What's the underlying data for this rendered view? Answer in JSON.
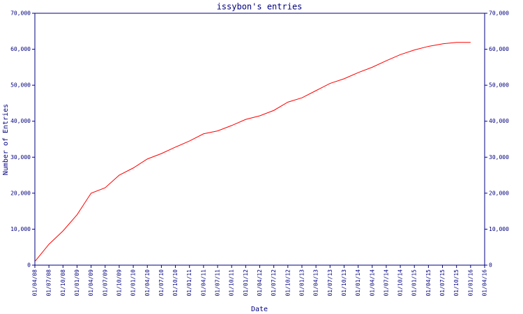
{
  "chart_data": {
    "type": "line",
    "title": "issybon's entries",
    "x_label": "Date",
    "y_label": "Number of Entries",
    "categories": [
      "01/04/08",
      "01/07/08",
      "01/10/08",
      "01/01/09",
      "01/04/09",
      "01/07/09",
      "01/10/09",
      "01/01/10",
      "01/04/10",
      "01/07/10",
      "01/10/10",
      "01/01/11",
      "01/04/11",
      "01/07/11",
      "01/10/11",
      "01/01/12",
      "01/04/12",
      "01/07/12",
      "01/10/12",
      "01/01/13",
      "01/04/13",
      "01/07/13",
      "01/10/13",
      "01/01/14",
      "01/04/14",
      "01/07/14",
      "01/10/14",
      "01/01/15",
      "01/04/15",
      "01/07/15",
      "01/10/15",
      "01/01/16",
      "01/04/16"
    ],
    "series": [
      {
        "name": "Entries",
        "color": "#ff0000",
        "values": [
          1000,
          5800,
          9500,
          14000,
          20000,
          21500,
          25000,
          27000,
          29500,
          31000,
          32800,
          34500,
          36500,
          37300,
          38800,
          40500,
          41500,
          43000,
          45300,
          46500,
          48500,
          50500,
          51800,
          53500,
          55000,
          56800,
          58500,
          59800,
          60800,
          61500,
          61900,
          61900,
          null
        ]
      }
    ],
    "ylim": [
      0,
      70000
    ],
    "yticks": [
      0,
      {
        "value": 10000,
        "label": "10,000"
      },
      {
        "value": 20000,
        "label": "20,000"
      },
      {
        "value": 30000,
        "label": "30,000"
      },
      {
        "value": 40000,
        "label": "40,000"
      },
      {
        "value": 50000,
        "label": "50,000"
      },
      {
        "value": 60000,
        "label": "60,000"
      },
      {
        "value": 70000,
        "label": "70,000"
      }
    ],
    "axis_color": "#000080"
  }
}
